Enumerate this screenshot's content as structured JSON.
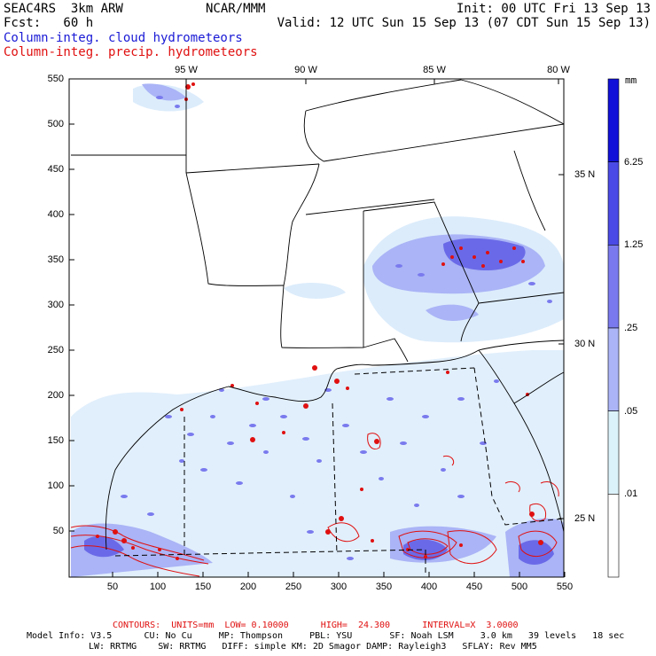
{
  "header": {
    "model": "SEAC4RS  3km ARW",
    "org": "NCAR/MMM",
    "init": "Init: 00 UTC Fri 13 Sep 13",
    "fcst": "Fcst:   60 h",
    "valid": "Valid: 12 UTC Sun 15 Sep 13 (07 CDT Sun 15 Sep 13)",
    "field1": "Column-integ. cloud hydrometeors",
    "field2": "Column-integ. precip. hydrometeors"
  },
  "axes": {
    "x_ticks": [
      "50",
      "100",
      "150",
      "200",
      "250",
      "300",
      "350",
      "400",
      "450",
      "500",
      "550"
    ],
    "y_ticks": [
      "50",
      "100",
      "150",
      "200",
      "250",
      "300",
      "350",
      "400",
      "450",
      "500",
      "550"
    ],
    "lon_labels": [
      "95 W",
      "90 W",
      "85 W",
      "80 W"
    ],
    "lat_labels": [
      "35 N",
      "30 N",
      "25 N"
    ]
  },
  "colorbar": {
    "unit": "mm",
    "labels": [
      "6.25",
      "1.25",
      ".25",
      ".05",
      ".01"
    ],
    "colors": [
      "#1010d8",
      "#4a4ae6",
      "#7a7aee",
      "#aab4f6",
      "#dcf2fa",
      "#ffffff"
    ]
  },
  "footer": {
    "contours": "CONTOURS:  UNITS=mm  LOW= 0.10000      HIGH=  24.300      INTERVAL=X  3.0000",
    "line1": "Model Info: V3.5      CU: No Cu     MP: Thompson     PBL: YSU       SF: Noah LSM     3.0 km   39 levels   18 sec",
    "line2": "LW: RRTMG    SW: RRTMG   DIFF: simple KM: 2D Smagor DAMP: Rayleigh3   SFLAY: Rev MM5"
  },
  "colors": {
    "cloud": "#7a7aee",
    "cloud_light": "#c8dcf8",
    "precip": "#e01010"
  }
}
